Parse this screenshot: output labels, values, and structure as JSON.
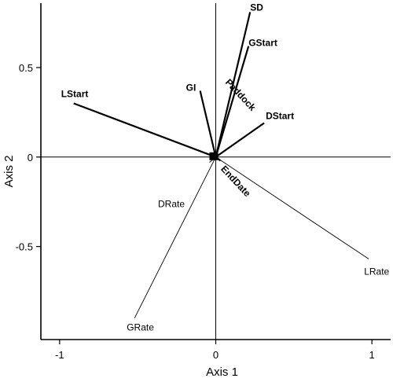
{
  "chart_data": {
    "type": "biplot",
    "xlabel": "Axis 1",
    "ylabel": "Axis 2",
    "xlim": [
      -1.12,
      1.12
    ],
    "ylim": [
      -1.02,
      0.86
    ],
    "xticks": [
      -1,
      0,
      1
    ],
    "yticks": [
      -0.5,
      0,
      0.5
    ],
    "xtick_labels": [
      "-1",
      "0",
      "1"
    ],
    "ytick_labels": [
      "-0.5",
      "0",
      "0.5"
    ],
    "vectors": [
      {
        "label": "SD",
        "x": 0.22,
        "y": 0.81,
        "weight": "heavy",
        "bold": true
      },
      {
        "label": "GStart",
        "x": 0.21,
        "y": 0.62,
        "weight": "heavy",
        "bold": true
      },
      {
        "label": "GI",
        "x": -0.1,
        "y": 0.37,
        "weight": "heavy",
        "bold": true
      },
      {
        "label": "LStart",
        "x": -0.91,
        "y": 0.3,
        "weight": "heavy",
        "bold": true
      },
      {
        "label": "DStart",
        "x": 0.31,
        "y": 0.19,
        "weight": "heavy",
        "bold": true
      },
      {
        "label": "Paddock",
        "x": -0.04,
        "y": 0.02,
        "weight": "heavy",
        "bold": true
      },
      {
        "label": "EndDate",
        "x": 0.03,
        "y": -0.02,
        "weight": "heavy",
        "bold": true
      },
      {
        "label": "LRate",
        "x": 0.98,
        "y": -0.57,
        "weight": "light",
        "bold": false
      },
      {
        "label": "DRate",
        "x": -0.04,
        "y": -0.03,
        "weight": "light",
        "bold": false
      },
      {
        "label": "GRate",
        "x": -0.52,
        "y": -0.9,
        "weight": "light",
        "bold": false
      }
    ],
    "grid": false,
    "reference_lines": [
      0,
      0
    ]
  }
}
